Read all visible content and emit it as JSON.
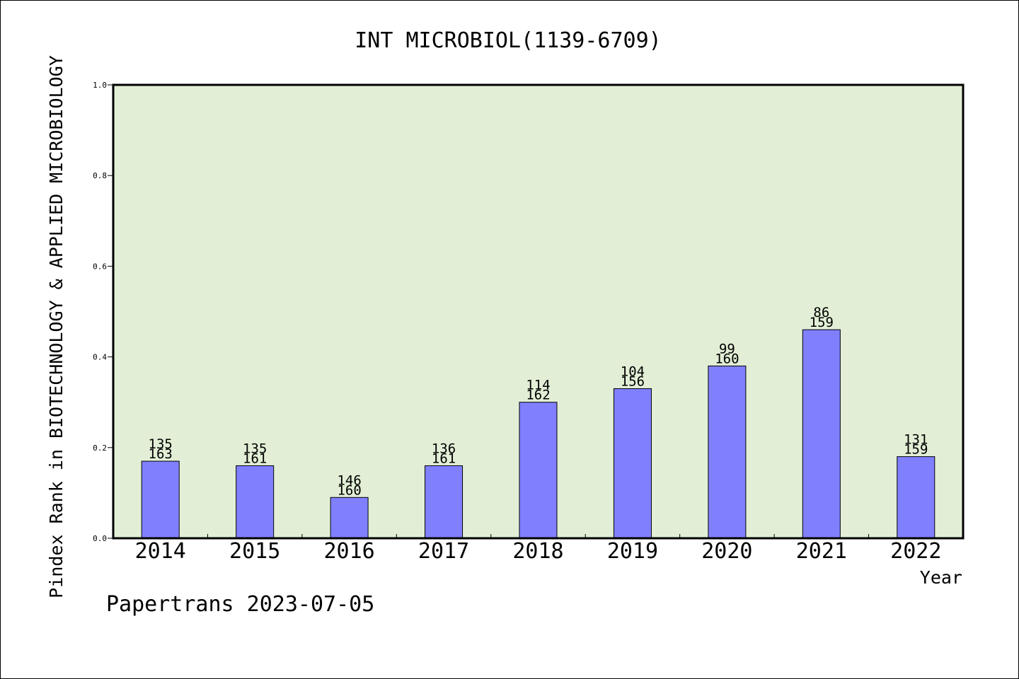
{
  "chart_data": {
    "type": "bar",
    "title": "INT MICROBIOL(1139-6709)",
    "xlabel": "Year",
    "ylabel": "Pindex Rank in BIOTECHNOLOGY & APPLIED MICROBIOLOGY",
    "ylim": [
      0,
      1.0
    ],
    "yticks": [
      "0.0",
      "0.2",
      "0.4",
      "0.6",
      "0.8",
      "1.0"
    ],
    "categories": [
      "2014",
      "2015",
      "2016",
      "2017",
      "2018",
      "2019",
      "2020",
      "2021",
      "2022"
    ],
    "values": [
      0.17,
      0.16,
      0.09,
      0.16,
      0.3,
      0.33,
      0.38,
      0.46,
      0.18
    ],
    "rank_labels": [
      "135",
      "135",
      "146",
      "136",
      "114",
      "104",
      "99",
      "86",
      "131"
    ],
    "total_labels": [
      "163",
      "161",
      "160",
      "161",
      "162",
      "156",
      "160",
      "159",
      "159"
    ],
    "grid": false,
    "colors": {
      "plot_background": "#e2efd6",
      "bar_fill": "#8080ff",
      "bar_stroke": "#000000"
    }
  },
  "footer": "Papertrans 2023-07-05"
}
